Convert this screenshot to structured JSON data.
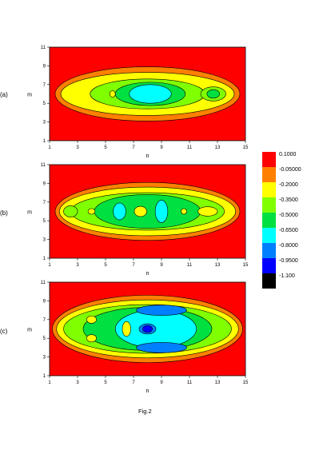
{
  "caption": "Fig.2",
  "colorbar": {
    "levels": [
      "0.1000",
      "-0.05000",
      "-0.2000",
      "-0.3500",
      "-0.5000",
      "-0.6500",
      "-0.8000",
      "-0.9500",
      "-1.100"
    ],
    "colors": [
      "#ff0000",
      "#ff8000",
      "#ffff00",
      "#80ff00",
      "#00e040",
      "#00ffff",
      "#0080ff",
      "#0000ff",
      "#000000"
    ]
  },
  "chart_data": [
    {
      "type": "contour",
      "panel_label": "(a)",
      "xlabel": "n",
      "ylabel": "m",
      "xlim": [
        1,
        15
      ],
      "ylim": [
        1,
        11
      ],
      "xticks": [
        "1",
        "3",
        "5",
        "7",
        "9",
        "11",
        "13",
        "15"
      ],
      "yticks": [
        "1",
        "3",
        "5",
        "7",
        "9",
        "11"
      ],
      "features": [
        {
          "desc": "central well",
          "n": 8.2,
          "m": 6,
          "min_level": "-0.6500"
        },
        {
          "desc": "secondary well",
          "n": 12.7,
          "m": 6,
          "min_level": "-0.5000"
        },
        {
          "desc": "small high spot",
          "n": 5.5,
          "m": 6,
          "level": "-0.2000"
        }
      ]
    },
    {
      "type": "contour",
      "panel_label": "(b)",
      "xlabel": "n",
      "ylabel": "m",
      "xlim": [
        1,
        15
      ],
      "ylim": [
        1,
        11
      ],
      "xticks": [
        "1",
        "3",
        "5",
        "7",
        "9",
        "11",
        "13",
        "15"
      ],
      "yticks": [
        "1",
        "3",
        "5",
        "7",
        "9",
        "11"
      ],
      "features": [
        {
          "desc": "well",
          "n": 6,
          "m": 6,
          "min_level": "-0.6500"
        },
        {
          "desc": "well",
          "n": 9,
          "m": 6,
          "min_level": "-0.6500"
        },
        {
          "desc": "saddle",
          "n": 7.5,
          "m": 6,
          "level": "-0.2000"
        }
      ]
    },
    {
      "type": "contour",
      "panel_label": "(c)",
      "xlabel": "n",
      "ylabel": "m",
      "xlim": [
        1,
        15
      ],
      "ylim": [
        1,
        11
      ],
      "xticks": [
        "1",
        "3",
        "5",
        "7",
        "9",
        "11",
        "13",
        "15"
      ],
      "yticks": [
        "1",
        "3",
        "5",
        "7",
        "9",
        "11"
      ],
      "features": [
        {
          "desc": "deepest well",
          "n": 8,
          "m": 6,
          "min_level": "-1.100"
        },
        {
          "desc": "upper blue band",
          "n": 9,
          "m": 8,
          "min_level": "-0.8000"
        },
        {
          "desc": "lower blue band",
          "n": 9,
          "m": 4,
          "min_level": "-0.8000"
        }
      ]
    }
  ]
}
